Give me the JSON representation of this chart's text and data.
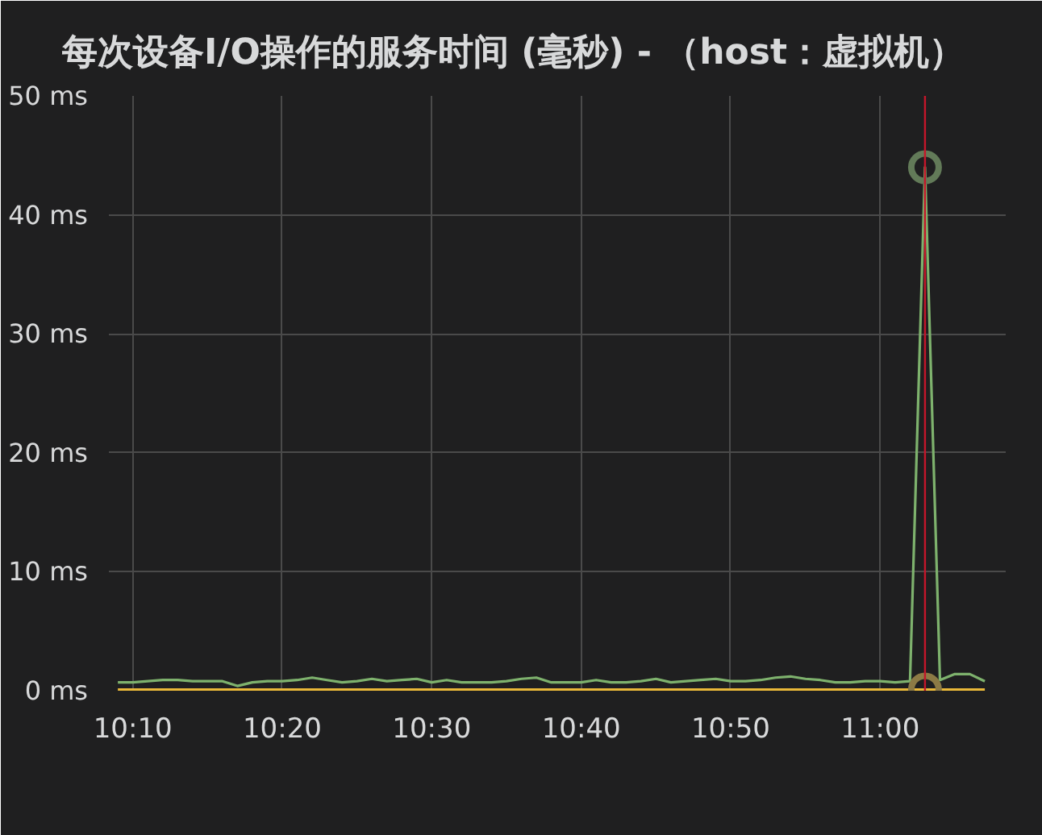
{
  "chart_data": {
    "type": "line",
    "title": "每次设备I/O操作的服务时间 (毫秒) - （host：虚拟机）",
    "x": [
      10.15,
      10.1667,
      10.1833,
      10.2,
      10.2167,
      10.2333,
      10.25,
      10.2667,
      10.2833,
      10.3,
      10.3167,
      10.3333,
      10.35,
      10.3667,
      10.3833,
      10.4,
      10.4167,
      10.4333,
      10.45,
      10.4667,
      10.4833,
      10.5,
      10.5167,
      10.5333,
      10.55,
      10.5667,
      10.5833,
      10.6,
      10.6167,
      10.6333,
      10.65,
      10.6667,
      10.6833,
      10.7,
      10.7167,
      10.7333,
      10.75,
      10.7667,
      10.7833,
      10.8,
      10.8167,
      10.8333,
      10.85,
      10.8667,
      10.8833,
      10.9,
      10.9167,
      10.9333,
      10.95,
      10.9667,
      10.9833,
      11.0,
      11.0167,
      11.0333,
      11.05,
      11.0667,
      11.0833,
      11.1,
      11.1167
    ],
    "series": [
      {
        "color": "#7eb26d",
        "values": [
          0.7,
          0.7,
          0.8,
          0.9,
          0.9,
          0.8,
          0.8,
          0.8,
          0.4,
          0.7,
          0.8,
          0.8,
          0.9,
          1.1,
          0.9,
          0.7,
          0.8,
          1.0,
          0.8,
          0.9,
          1.0,
          0.7,
          0.9,
          0.7,
          0.7,
          0.7,
          0.8,
          1.0,
          1.1,
          0.7,
          0.7,
          0.7,
          0.9,
          0.7,
          0.7,
          0.8,
          1.0,
          0.7,
          0.8,
          0.9,
          1.0,
          0.8,
          0.8,
          0.9,
          1.1,
          1.2,
          1.0,
          0.9,
          0.7,
          0.7,
          0.8,
          0.8,
          0.7,
          0.8,
          44,
          0.9,
          1.4,
          1.4,
          0.8
        ]
      },
      {
        "color": "#eab839",
        "values": [
          0.1,
          0.1,
          0.1,
          0.1,
          0.1,
          0.1,
          0.1,
          0.1,
          0.1,
          0.1,
          0.1,
          0.1,
          0.1,
          0.1,
          0.1,
          0.1,
          0.1,
          0.1,
          0.1,
          0.1,
          0.1,
          0.1,
          0.1,
          0.1,
          0.1,
          0.1,
          0.1,
          0.1,
          0.1,
          0.1,
          0.1,
          0.1,
          0.1,
          0.1,
          0.1,
          0.1,
          0.1,
          0.1,
          0.1,
          0.1,
          0.1,
          0.1,
          0.1,
          0.1,
          0.1,
          0.1,
          0.1,
          0.1,
          0.1,
          0.1,
          0.1,
          0.1,
          0.1,
          0.1,
          0.1,
          0.1,
          0.1,
          0.1,
          0.1
        ]
      },
      {
        "type": "scatter",
        "marker": "circle",
        "color": "#627a58",
        "x": [
          11.05
        ],
        "values": [
          44
        ]
      },
      {
        "type": "scatter",
        "marker": "circle",
        "color": "#8c7a45",
        "x": [
          11.05
        ],
        "values": [
          0.1
        ]
      }
    ],
    "xlim": [
      10.14,
      11.14
    ],
    "ylim": [
      0,
      50
    ],
    "xticks": [
      {
        "value": 10.1667,
        "label": "10:10"
      },
      {
        "value": 10.3333,
        "label": "10:20"
      },
      {
        "value": 10.5,
        "label": "10:30"
      },
      {
        "value": 10.6667,
        "label": "10:40"
      },
      {
        "value": 10.8333,
        "label": "10:50"
      },
      {
        "value": 11.0,
        "label": "11:00"
      }
    ],
    "yticks": [
      {
        "value": 0,
        "label": "0 ms"
      },
      {
        "value": 10,
        "label": "10 ms"
      },
      {
        "value": 20,
        "label": "20 ms"
      },
      {
        "value": 30,
        "label": "30 ms"
      },
      {
        "value": 40,
        "label": "40 ms"
      },
      {
        "value": 50,
        "label": "50 ms"
      }
    ],
    "ref_lines": [
      {
        "axis": "x",
        "value": 11.05,
        "color": "#c4162a"
      }
    ],
    "grid": true
  }
}
